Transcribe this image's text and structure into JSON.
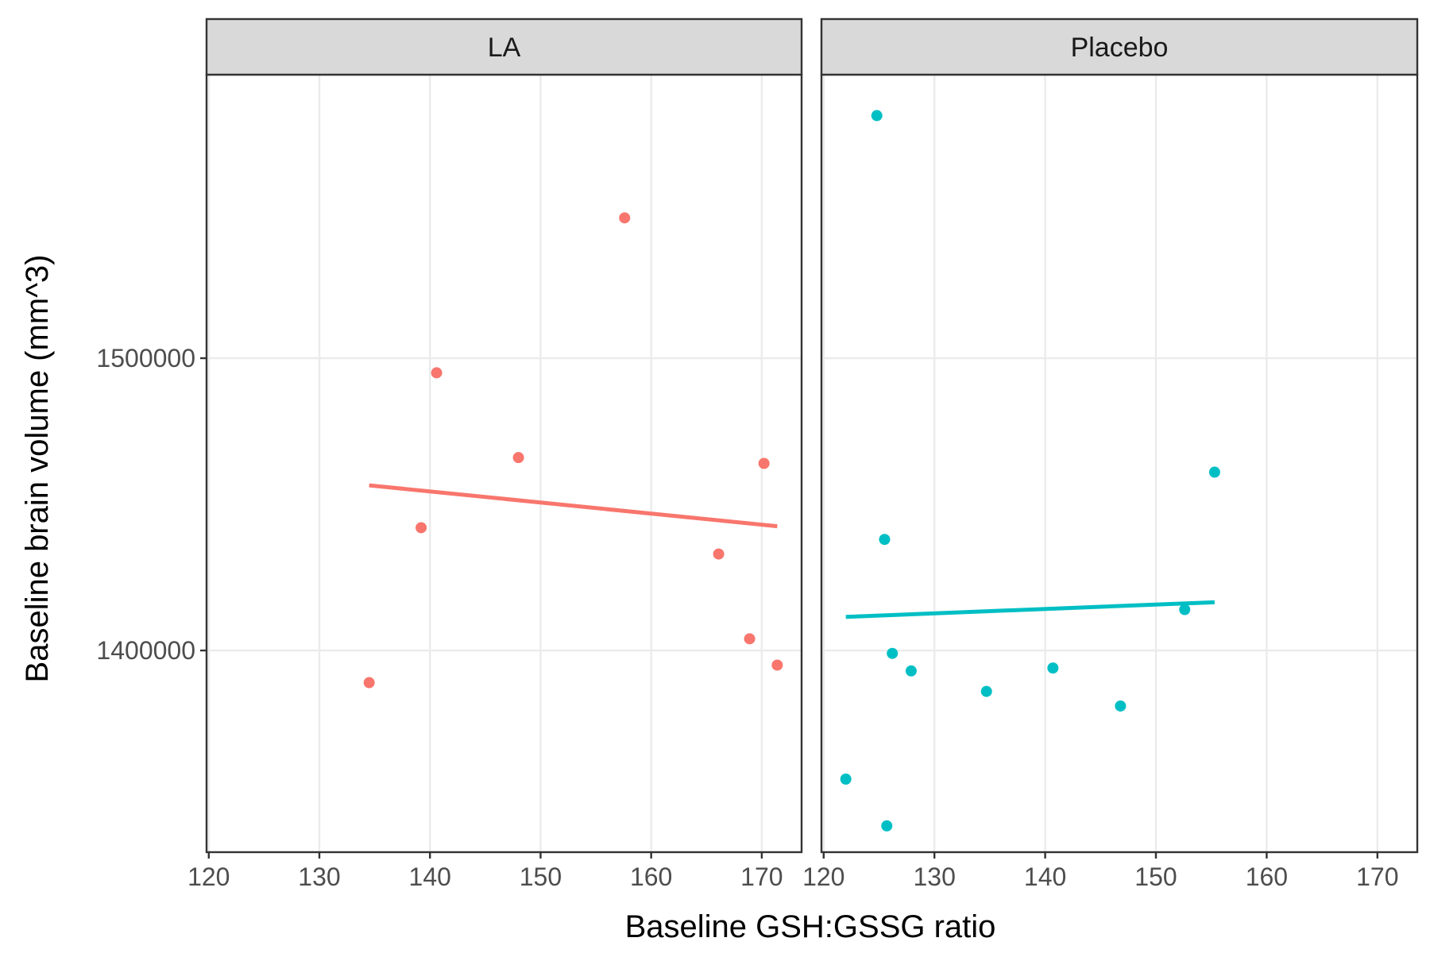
{
  "chart_data": {
    "type": "scatter",
    "facets": [
      "LA",
      "Placebo"
    ],
    "xlabel": "Baseline GSH:GSSG ratio",
    "ylabel": "Baseline brain volume (mm^3)",
    "x_ticks": [
      120,
      130,
      140,
      150,
      160,
      170
    ],
    "y_ticks": [
      1400000,
      1500000
    ],
    "xlim": [
      119.8,
      173.6
    ],
    "ylim": [
      1331000,
      1597000
    ],
    "grid": true,
    "colors": {
      "LA": "#F8766D",
      "Placebo": "#00BFC4"
    },
    "series": [
      {
        "panel": "LA",
        "points": [
          {
            "x": 134.5,
            "y": 1389000
          },
          {
            "x": 139.2,
            "y": 1442000
          },
          {
            "x": 140.6,
            "y": 1495000
          },
          {
            "x": 148.0,
            "y": 1466000
          },
          {
            "x": 157.6,
            "y": 1548000
          },
          {
            "x": 166.1,
            "y": 1433000
          },
          {
            "x": 168.9,
            "y": 1404000
          },
          {
            "x": 170.2,
            "y": 1464000
          },
          {
            "x": 171.4,
            "y": 1395000
          }
        ],
        "fit": [
          {
            "x": 134.5,
            "y": 1456500
          },
          {
            "x": 171.4,
            "y": 1442500
          }
        ]
      },
      {
        "panel": "Placebo",
        "points": [
          {
            "x": 122.0,
            "y": 1356000
          },
          {
            "x": 124.8,
            "y": 1583000
          },
          {
            "x": 125.5,
            "y": 1438000
          },
          {
            "x": 125.7,
            "y": 1340000
          },
          {
            "x": 126.2,
            "y": 1399000
          },
          {
            "x": 127.9,
            "y": 1393000
          },
          {
            "x": 134.7,
            "y": 1386000
          },
          {
            "x": 140.7,
            "y": 1394000
          },
          {
            "x": 146.8,
            "y": 1381000
          },
          {
            "x": 152.6,
            "y": 1414000
          },
          {
            "x": 155.3,
            "y": 1461000
          }
        ],
        "fit": [
          {
            "x": 122.0,
            "y": 1411500
          },
          {
            "x": 155.3,
            "y": 1416500
          }
        ]
      }
    ]
  }
}
